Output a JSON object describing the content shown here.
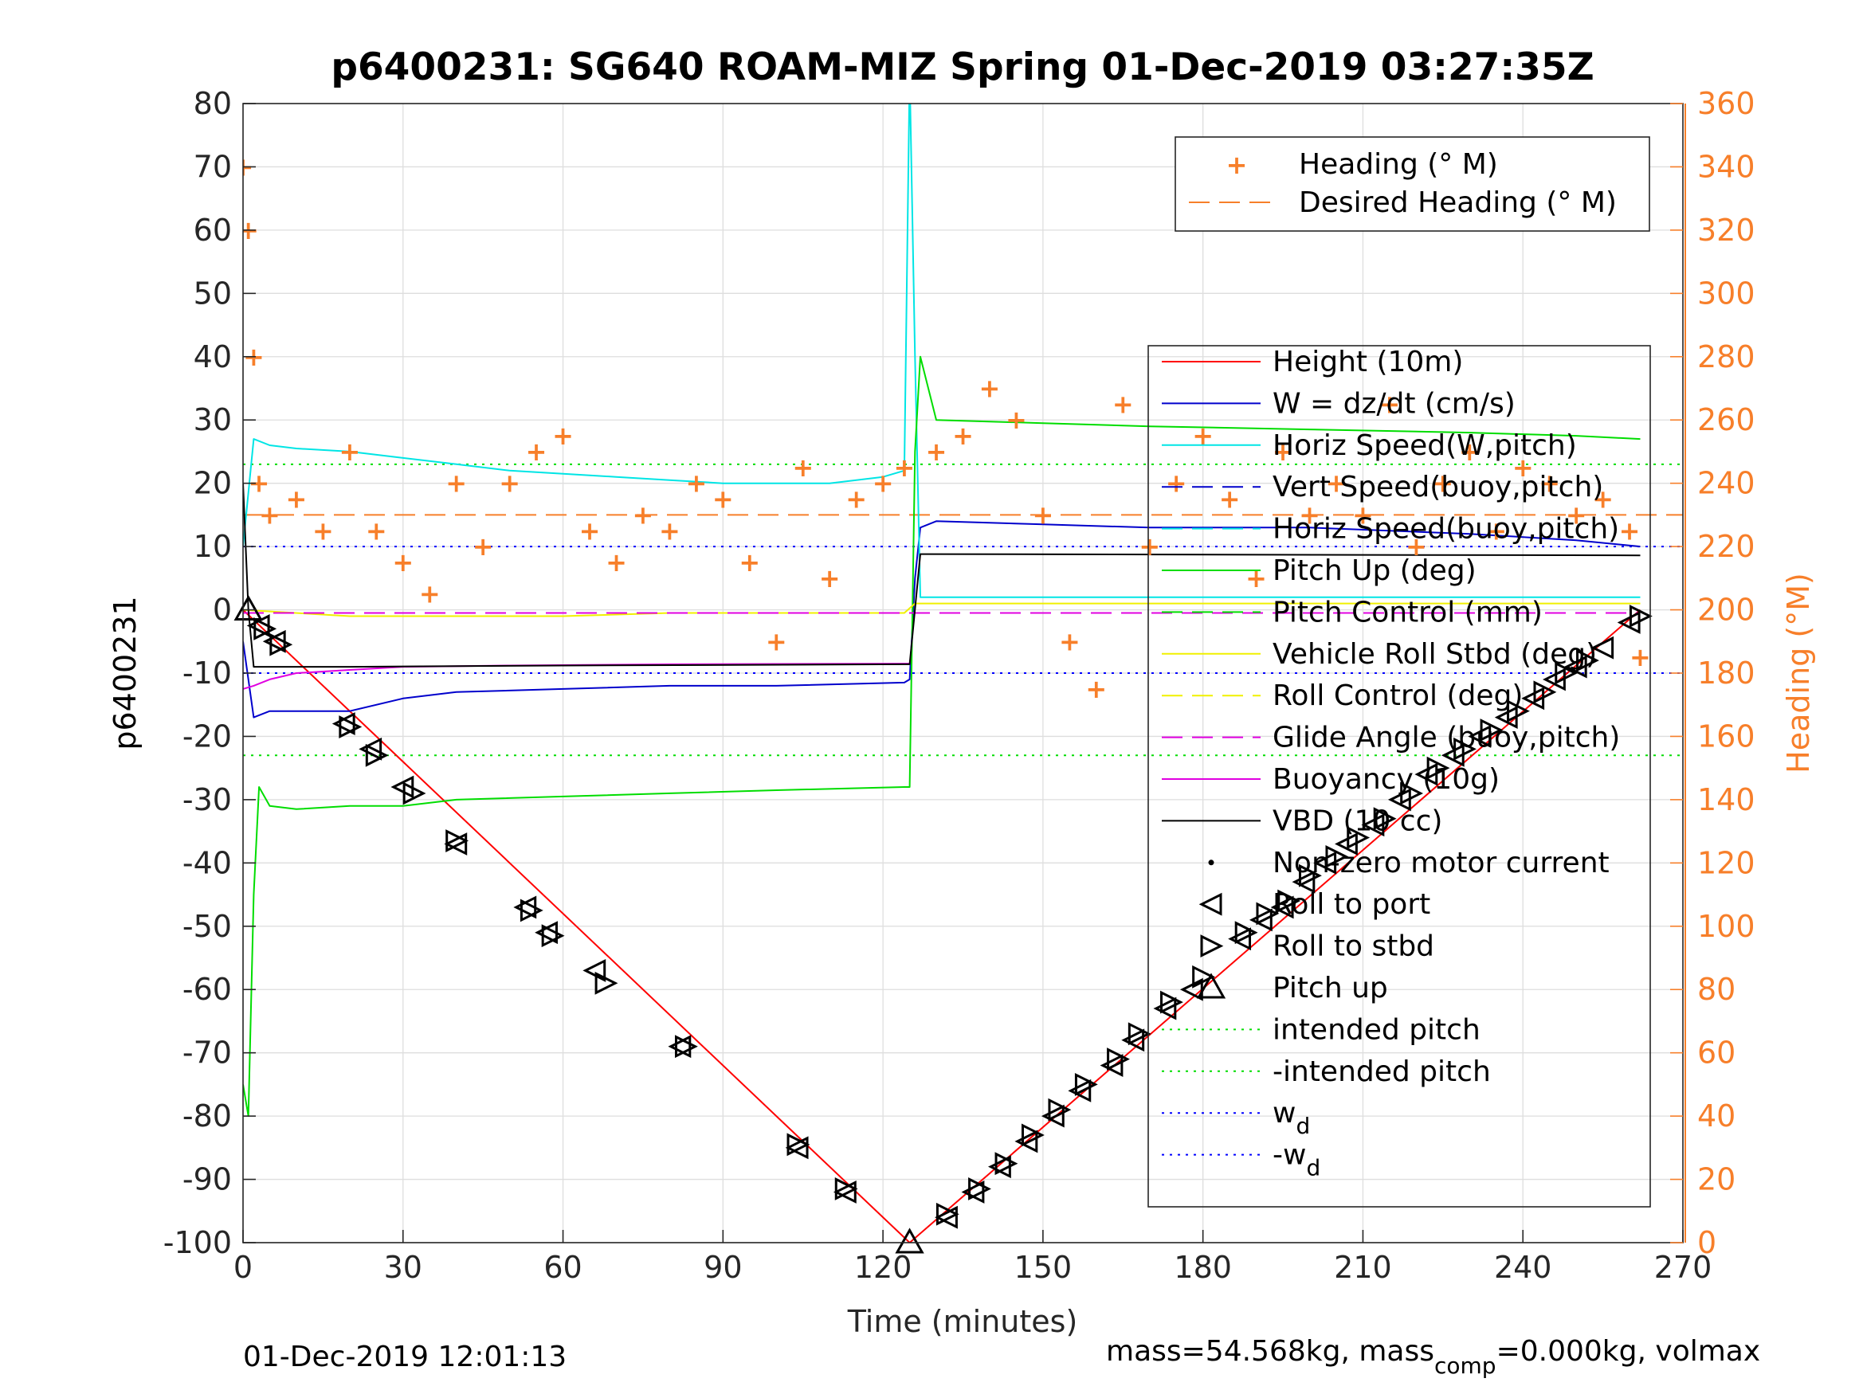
{
  "chart_data": {
    "type": "line",
    "title": "p6400231: SG640 ROAM-MIZ Spring 01-Dec-2019 03:27:35Z",
    "xlabel": "Time (minutes)",
    "ylabel": "p6400231",
    "y2label": "Heading (°M)",
    "xlim": [
      0,
      270
    ],
    "ylim": [
      -100,
      80
    ],
    "y2lim": [
      0,
      360
    ],
    "xticks": [
      0,
      30,
      60,
      90,
      120,
      150,
      180,
      210,
      240,
      270
    ],
    "yticks": [
      -100,
      -90,
      -80,
      -70,
      -60,
      -50,
      -40,
      -30,
      -20,
      -10,
      0,
      10,
      20,
      30,
      40,
      50,
      60,
      70,
      80
    ],
    "y2ticks": [
      0,
      20,
      40,
      60,
      80,
      100,
      120,
      140,
      160,
      180,
      200,
      220,
      240,
      260,
      280,
      300,
      320,
      340,
      360
    ],
    "grid": true,
    "footer_left": "01-Dec-2019 12:01:13",
    "footer_right_parts": [
      "mass=54.568kg, mass",
      "comp",
      "=0.000kg, volmax"
    ],
    "legend_heading": {
      "placement": "top-right",
      "entries": [
        "Heading (° M)",
        "Desired Heading (° M)"
      ]
    },
    "legend_main": {
      "placement": "right",
      "entries": [
        {
          "label": "Height (10m)",
          "style": "line",
          "color": "#ff0000"
        },
        {
          "label": "W = dz/dt (cm/s)",
          "style": "line",
          "color": "#0000cc"
        },
        {
          "label": "Horiz Speed(W,pitch)",
          "style": "line",
          "color": "#00e5e5"
        },
        {
          "label": "Vert Speed(buoy,pitch)",
          "style": "dash",
          "color": "#0000cc"
        },
        {
          "label": "Horiz Speed(buoy,pitch)",
          "style": "dash",
          "color": "#00e5e5"
        },
        {
          "label": "Pitch Up (deg)",
          "style": "line",
          "color": "#00dd00"
        },
        {
          "label": "Pitch Control (mm)",
          "style": "dash",
          "color": "#00dd00"
        },
        {
          "label": "Vehicle Roll Stbd (deg)",
          "style": "line",
          "color": "#f0f000"
        },
        {
          "label": "Roll Control (deg)",
          "style": "dash",
          "color": "#f0f000"
        },
        {
          "label": "Glide Angle (buoy,pitch)",
          "style": "dash",
          "color": "#e000e0"
        },
        {
          "label": "Buoyancy (10g)",
          "style": "line",
          "color": "#e000e0"
        },
        {
          "label": "VBD (10 cc)",
          "style": "line",
          "color": "#000000"
        },
        {
          "label": "Non-zero motor current",
          "style": "dot",
          "color": "#000000"
        },
        {
          "label": "Roll to port",
          "style": "tri-left",
          "color": "#000000"
        },
        {
          "label": "Roll to stbd",
          "style": "tri-right",
          "color": "#000000"
        },
        {
          "label": "Pitch up",
          "style": "tri-up",
          "color": "#000000"
        },
        {
          "label": "intended pitch",
          "style": "dotted",
          "color": "#00dd00"
        },
        {
          "label": "-intended pitch",
          "style": "dotted",
          "color": "#00dd00"
        },
        {
          "label": "w",
          "sub": "d",
          "style": "dotted",
          "color": "#0000ff"
        },
        {
          "label": "-w",
          "sub": "d",
          "style": "dotted",
          "color": "#0000ff"
        }
      ]
    },
    "colors": {
      "heading": "#f77f2a",
      "height": "#ff0000",
      "w": "#0000cc",
      "horiz_speed": "#00e5e5",
      "pitch": "#00dd00",
      "roll": "#f0f000",
      "glide": "#e000e0",
      "vbd": "#000000",
      "wd": "#0000ff"
    },
    "reference_lines": {
      "intended_pitch": 23,
      "neg_intended_pitch": -23,
      "wd": 10,
      "neg_wd": -10,
      "desired_heading_deg": 230
    },
    "series": [
      {
        "key": "height",
        "x": [
          0,
          125,
          262
        ],
        "y": [
          0,
          -100,
          0
        ]
      },
      {
        "key": "w",
        "x": [
          0,
          2,
          5,
          10,
          20,
          30,
          40,
          60,
          80,
          100,
          124,
          125,
          126,
          127,
          130,
          150,
          170,
          200,
          230,
          250,
          262
        ],
        "y": [
          -5,
          -17,
          -16,
          -16,
          -16,
          -14,
          -13,
          -12.5,
          -12,
          -12,
          -11.5,
          -11,
          5,
          13,
          14,
          13.5,
          13,
          13,
          12,
          11,
          10
        ]
      },
      {
        "key": "horiz_speed",
        "x": [
          0,
          2,
          5,
          10,
          20,
          30,
          40,
          50,
          60,
          70,
          80,
          90,
          100,
          110,
          120,
          124,
          125,
          126,
          127,
          128,
          262
        ],
        "y": [
          10,
          27,
          26,
          25.5,
          25,
          24,
          23,
          22,
          21.5,
          21,
          20.5,
          20,
          20,
          20,
          21,
          22,
          85,
          40,
          2,
          2,
          2
        ]
      },
      {
        "key": "pitch",
        "x": [
          0,
          1,
          2,
          3,
          5,
          10,
          20,
          30,
          40,
          60,
          80,
          100,
          124,
          125,
          126,
          127,
          130,
          150,
          170,
          200,
          230,
          250,
          262
        ],
        "y": [
          -75,
          -80,
          -45,
          -28,
          -31,
          -31.5,
          -31,
          -31,
          -30,
          -29.5,
          -29,
          -28.5,
          -28,
          -28,
          25,
          40,
          30,
          29.5,
          29,
          28.5,
          28,
          27.5,
          27
        ]
      },
      {
        "key": "roll",
        "x": [
          0,
          20,
          40,
          60,
          80,
          100,
          124,
          126,
          150,
          180,
          210,
          240,
          262
        ],
        "y": [
          0,
          -1,
          -1,
          -1,
          -0.5,
          -0.5,
          -0.5,
          1,
          1,
          1,
          1,
          1,
          1
        ]
      },
      {
        "key": "glide",
        "x": [
          0,
          262
        ],
        "y": [
          -0.5,
          -0.5
        ]
      },
      {
        "key": "buoyancy",
        "x": [
          0,
          2,
          5,
          10,
          20,
          30,
          50,
          80,
          124,
          125
        ],
        "y": [
          -12.5,
          -12,
          -11,
          -10,
          -9.5,
          -9,
          -8.8,
          -8.6,
          -8.5,
          -8.5
        ]
      },
      {
        "key": "vbd",
        "x": [
          0,
          1,
          2,
          5,
          20,
          60,
          124,
          125,
          127,
          128,
          262
        ],
        "y": [
          20,
          0,
          -9,
          -9,
          -9,
          -8.8,
          -8.6,
          -8.6,
          8.8,
          8.8,
          8.6
        ]
      },
      {
        "key": "heading",
        "x": [
          0,
          1,
          2,
          3,
          5,
          10,
          15,
          20,
          25,
          30,
          35,
          40,
          45,
          50,
          55,
          60,
          65,
          70,
          75,
          80,
          85,
          90,
          95,
          100,
          105,
          110,
          115,
          120,
          124,
          130,
          135,
          140,
          145,
          150,
          155,
          160,
          165,
          170,
          175,
          180,
          185,
          190,
          195,
          200,
          205,
          210,
          215,
          220,
          225,
          230,
          235,
          240,
          245,
          250,
          255,
          260,
          262
        ],
        "y": [
          340,
          320,
          280,
          240,
          230,
          235,
          225,
          250,
          225,
          215,
          205,
          240,
          220,
          240,
          250,
          255,
          225,
          215,
          230,
          225,
          240,
          235,
          215,
          190,
          245,
          210,
          235,
          240,
          245,
          250,
          255,
          270,
          260,
          230,
          190,
          175,
          265,
          220,
          240,
          255,
          235,
          210,
          250,
          230,
          240,
          230,
          265,
          220,
          240,
          250,
          225,
          245,
          240,
          230,
          235,
          225,
          185
        ]
      }
    ],
    "markers": {
      "roll_to_port": [
        [
          3,
          -2.5
        ],
        [
          6,
          -5
        ],
        [
          19,
          -18
        ],
        [
          24,
          -22
        ],
        [
          30,
          -28
        ],
        [
          40,
          -37
        ],
        [
          53,
          -47
        ],
        [
          57,
          -51
        ],
        [
          66,
          -57
        ],
        [
          82,
          -69
        ],
        [
          104,
          -85
        ],
        [
          113,
          -92
        ],
        [
          132,
          -96
        ],
        [
          137,
          -92
        ],
        [
          142,
          -88
        ],
        [
          147,
          -84
        ],
        [
          152,
          -80
        ],
        [
          157,
          -76
        ],
        [
          163,
          -72
        ],
        [
          167,
          -68
        ],
        [
          173,
          -63
        ],
        [
          178,
          -60
        ],
        [
          187,
          -52
        ],
        [
          191,
          -49
        ],
        [
          195,
          -47
        ],
        [
          199,
          -43
        ],
        [
          203,
          -40
        ],
        [
          207,
          -37
        ],
        [
          212,
          -34
        ],
        [
          217,
          -30
        ],
        [
          222,
          -26
        ],
        [
          227,
          -23
        ],
        [
          232,
          -20
        ],
        [
          237,
          -17
        ],
        [
          242,
          -14
        ],
        [
          246,
          -11
        ],
        [
          250,
          -9
        ],
        [
          255,
          -6
        ],
        [
          260,
          -2
        ]
      ],
      "roll_to_stbd": [
        [
          4,
          -3
        ],
        [
          7,
          -5.5
        ],
        [
          20,
          -18.5
        ],
        [
          25,
          -23
        ],
        [
          32,
          -29
        ],
        [
          40,
          -36.5
        ],
        [
          54,
          -47.5
        ],
        [
          58,
          -51.5
        ],
        [
          68,
          -59
        ],
        [
          83,
          -69
        ],
        [
          104,
          -84.5
        ],
        [
          113,
          -91.5
        ],
        [
          132,
          -95.5
        ],
        [
          138,
          -91.5
        ],
        [
          143,
          -87.5
        ],
        [
          148,
          -83
        ],
        [
          153,
          -79
        ],
        [
          158,
          -75
        ],
        [
          164,
          -71
        ],
        [
          168,
          -67
        ],
        [
          174,
          -62
        ],
        [
          180,
          -58
        ],
        [
          188,
          -51
        ],
        [
          192,
          -48
        ],
        [
          196,
          -46
        ],
        [
          200,
          -42
        ],
        [
          205,
          -39
        ],
        [
          209,
          -36
        ],
        [
          214,
          -33
        ],
        [
          219,
          -29
        ],
        [
          224,
          -25
        ],
        [
          229,
          -22
        ],
        [
          234,
          -19
        ],
        [
          239,
          -16
        ],
        [
          244,
          -13
        ],
        [
          248,
          -10
        ],
        [
          252,
          -8
        ],
        [
          262,
          -1
        ]
      ],
      "pitch_up": [
        [
          1,
          0
        ],
        [
          125,
          -100
        ]
      ]
    }
  }
}
